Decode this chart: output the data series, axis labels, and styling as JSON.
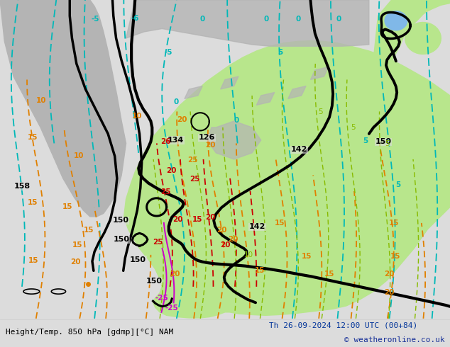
{
  "title_left": "Height/Temp. 850 hPa [gdmp][°C] NAM",
  "title_right": "Th 26-09-2024 12:00 UTC (00+84)",
  "copyright": "© weatheronline.co.uk",
  "bg_color": "#dcdcdc",
  "map_bg": "#dcdcdc",
  "land_green": "#b8e68c",
  "land_green2": "#c8f0a0",
  "land_gray": "#b4b4b4",
  "water_blue": "#b0d0f0",
  "title_color": "#003399",
  "copyright_color": "#1a3399",
  "bottom_label_color": "#000000",
  "figsize": [
    6.34,
    4.9
  ],
  "dpi": 100,
  "bottom_bar_color": "#f0f0f0",
  "bottom_bar_height": 0.082,
  "cyan_color": "#00b8b8",
  "orange_color": "#e08000",
  "red_color": "#cc0000",
  "magenta_color": "#cc00cc",
  "green_color": "#88bb00",
  "black_lw": 2.5,
  "cyan_lw": 1.3,
  "orange_lw": 1.3,
  "red_lw": 1.3,
  "green_lw": 1.0,
  "magenta_lw": 1.4,
  "label_fs": 7.5,
  "title_fs": 8.0,
  "copy_fs": 8.0
}
